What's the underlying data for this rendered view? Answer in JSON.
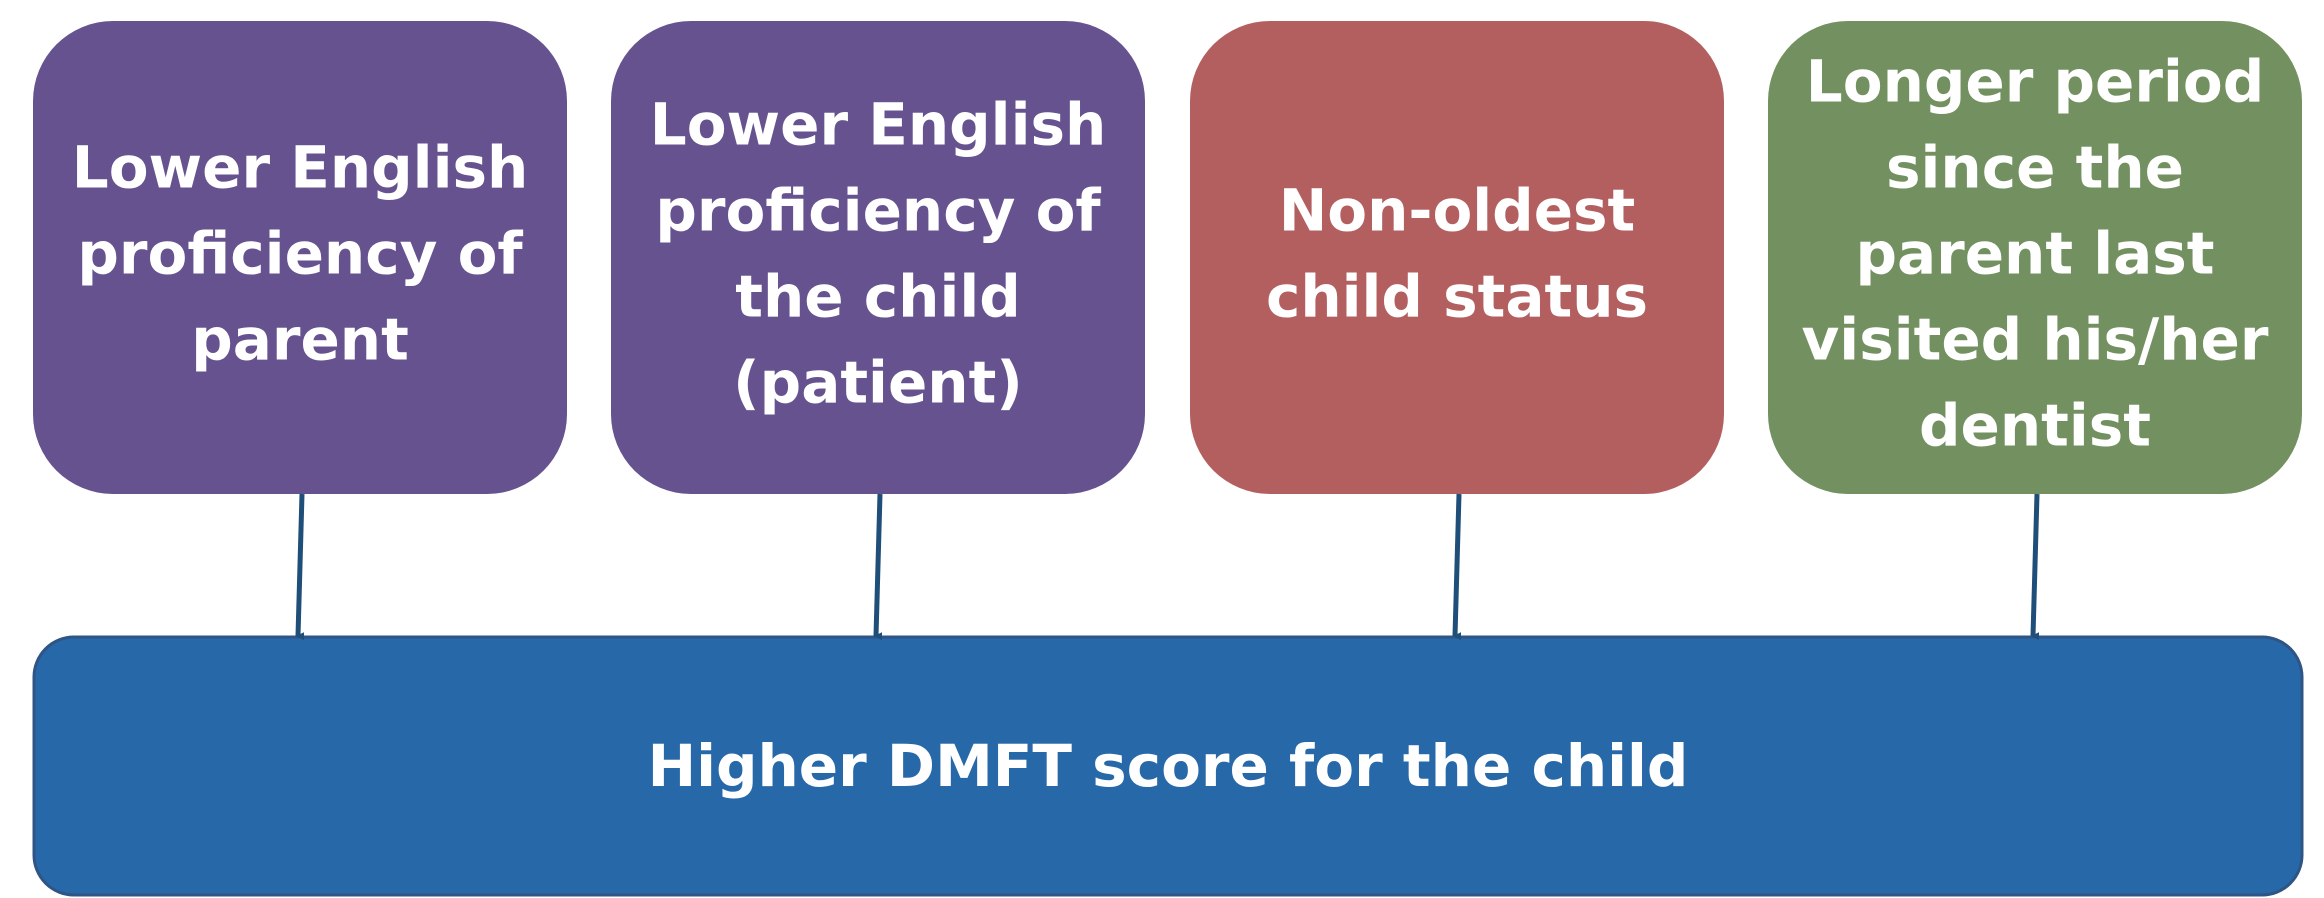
{
  "nodes": [
    {
      "lines": [
        "Lower English",
        "proficiency of",
        "parent"
      ]
    },
    {
      "lines": [
        "Lower English",
        "proficiency of",
        "the child",
        "(patient)"
      ]
    },
    {
      "lines": [
        "Non-oldest",
        "child status"
      ]
    },
    {
      "lines": [
        "Longer period",
        "since the",
        "parent last",
        "visited his/her",
        "dentist"
      ]
    }
  ],
  "outcome": {
    "label": "Higher DMFT score for the child"
  }
}
